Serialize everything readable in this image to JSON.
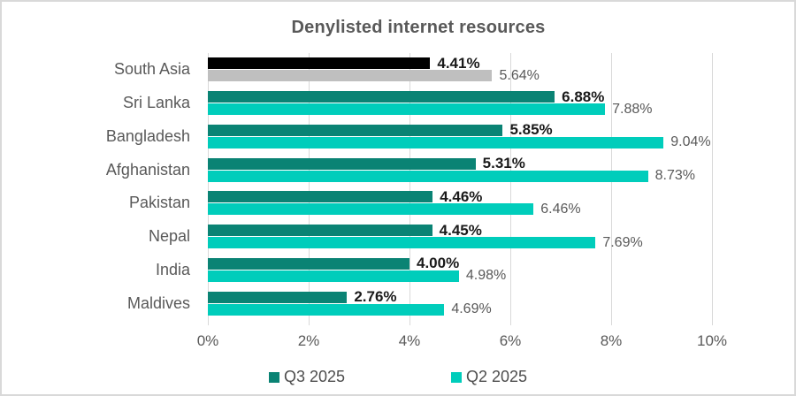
{
  "chart_data": {
    "type": "bar",
    "orientation": "horizontal",
    "title": "Denylisted internet resources",
    "categories": [
      "South Asia",
      "Sri Lanka",
      "Bangladesh",
      "Afghanistan",
      "Pakistan",
      "Nepal",
      "India",
      "Maldives"
    ],
    "series": [
      {
        "name": "Q3 2025",
        "color": "#0A8374",
        "bar_colors": [
          "#000000",
          "#0A8374",
          "#0A8374",
          "#0A8374",
          "#0A8374",
          "#0A8374",
          "#0A8374",
          "#0A8374"
        ],
        "values": [
          4.41,
          6.88,
          5.85,
          5.31,
          4.46,
          4.45,
          4.0,
          2.76
        ],
        "labels": [
          "4.41%",
          "6.88%",
          "5.85%",
          "5.31%",
          "4.46%",
          "4.45%",
          "4.00%",
          "2.76%"
        ]
      },
      {
        "name": "Q2 2025",
        "color": "#00CDBB",
        "bar_colors": [
          "#BFBFBF",
          "#00CDBB",
          "#00CDBB",
          "#00CDBB",
          "#00CDBB",
          "#00CDBB",
          "#00CDBB",
          "#00CDBB"
        ],
        "values": [
          5.64,
          7.88,
          9.04,
          8.73,
          6.46,
          7.69,
          4.98,
          4.69
        ],
        "labels": [
          "5.64%",
          "7.88%",
          "9.04%",
          "8.73%",
          "6.46%",
          "7.69%",
          "4.98%",
          "4.69%"
        ]
      }
    ],
    "x_ticks": [
      "0%",
      "2%",
      "4%",
      "6%",
      "8%",
      "10%"
    ],
    "xlim": [
      0,
      10
    ],
    "grid": "vertical",
    "legend_position": "bottom"
  },
  "style": {
    "title_color": "#595959",
    "axis_text_color": "#595959",
    "grid_color": "#D9D9D9",
    "border_color": "#D9D9D9",
    "background": "#FFFFFF",
    "q3_value_label_color": "#1A1A1A",
    "q2_value_label_color": "#595959"
  }
}
